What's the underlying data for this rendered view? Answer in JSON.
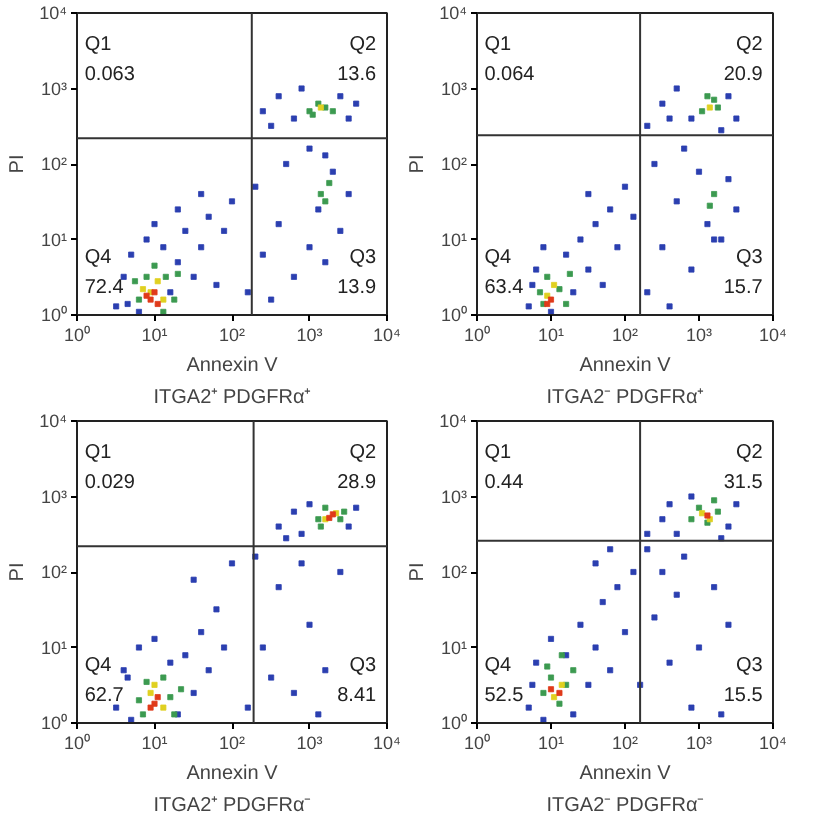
{
  "chart_data": [
    {
      "type": "scatter",
      "title": "ITGA2⁺ PDGFRα⁺",
      "xlabel": "Annexin V",
      "ylabel": "PI",
      "log": "xy",
      "marker": "square",
      "xlim": [
        1,
        10000
      ],
      "ylim": [
        1,
        10000
      ],
      "xticks": [
        {
          "value": 1,
          "label": "10⁰"
        },
        {
          "value": 10,
          "label": "10¹"
        },
        {
          "value": 100,
          "label": "10²"
        },
        {
          "value": 1000,
          "label": "10³"
        },
        {
          "value": 10000,
          "label": "10⁴"
        }
      ],
      "yticks": [
        {
          "value": 1,
          "label": "10⁰"
        },
        {
          "value": 10,
          "label": "10¹"
        },
        {
          "value": 100,
          "label": "10²"
        },
        {
          "value": 1000,
          "label": "10³"
        },
        {
          "value": 10000,
          "label": "10⁴"
        }
      ],
      "ref_lines": [
        {
          "axis": "x",
          "value": 180,
          "color": "#333333"
        },
        {
          "axis": "y",
          "value": 220,
          "color": "#333333"
        }
      ],
      "annotations": [
        "Q1",
        "0.063",
        "Q2",
        "13.6",
        "Q4",
        "72.4",
        "Q3",
        "13.9"
      ],
      "series": [
        {
          "color": "#2b3fb0",
          "x": [
            3.2,
            4,
            5,
            6.3,
            7.9,
            10,
            13,
            16,
            20,
            25,
            32,
            40,
            50,
            63,
            79,
            100,
            40,
            20,
            4.5,
            160,
            250,
            400,
            630,
            1000,
            1600,
            2500,
            200,
            500,
            1300,
            2000,
            1000,
            3200,
            320,
            1600,
            250,
            400,
            630,
            2500,
            3200,
            4000,
            790,
            320
          ],
          "values": [
            1.3,
            3.2,
            6.3,
            1.1,
            10,
            16,
            7.9,
            2,
            5,
            13,
            3.2,
            7.9,
            20,
            2.5,
            13,
            32,
            40,
            25,
            1.4,
            2,
            6.3,
            16,
            3.2,
            7.9,
            5,
            13,
            50,
            100,
            25,
            79,
            160,
            40,
            1.6,
            130,
            500,
            790,
            400,
            790,
            400,
            630,
            1000,
            320
          ]
        },
        {
          "color": "#3c9a50",
          "x": [
            6.3,
            7.9,
            10,
            14,
            18,
            20,
            5.6,
            13,
            1400,
            1800,
            1600,
            1000,
            1300,
            1600,
            2000,
            1100
          ],
          "values": [
            1.6,
            3.2,
            4.5,
            3.2,
            1.6,
            3.5,
            2.8,
            1.1,
            40,
            56,
            32,
            500,
            630,
            560,
            500,
            450
          ]
        },
        {
          "color": "#e0d020",
          "x": [
            8.9,
            11,
            13,
            7.1,
            1400
          ],
          "values": [
            2,
            2.8,
            1.6,
            2.2,
            560
          ]
        },
        {
          "color": "#e03a1a",
          "x": [
            8.9,
            10,
            11,
            7.9
          ],
          "values": [
            1.6,
            2,
            1.4,
            1.8
          ]
        }
      ]
    },
    {
      "type": "scatter",
      "title": "ITGA2⁻ PDGFRα⁺",
      "xlabel": "Annexin V",
      "ylabel": "PI",
      "log": "xy",
      "marker": "square",
      "xlim": [
        1,
        10000
      ],
      "ylim": [
        1,
        10000
      ],
      "xticks": [
        {
          "value": 1,
          "label": "10⁰"
        },
        {
          "value": 10,
          "label": "10¹"
        },
        {
          "value": 100,
          "label": "10²"
        },
        {
          "value": 1000,
          "label": "10³"
        },
        {
          "value": 10000,
          "label": "10⁴"
        }
      ],
      "yticks": [
        {
          "value": 1,
          "label": "10⁰"
        },
        {
          "value": 10,
          "label": "10¹"
        },
        {
          "value": 100,
          "label": "10²"
        },
        {
          "value": 1000,
          "label": "10³"
        },
        {
          "value": 10000,
          "label": "10⁴"
        }
      ],
      "ref_lines": [
        {
          "axis": "x",
          "value": 160,
          "color": "#333333"
        },
        {
          "axis": "y",
          "value": 240,
          "color": "#333333"
        }
      ],
      "annotations": [
        "Q1",
        "0.064",
        "Q2",
        "20.9",
        "Q4",
        "63.4",
        "Q3",
        "15.7"
      ],
      "series": [
        {
          "color": "#2b3fb0",
          "x": [
            5,
            6.3,
            7.9,
            10,
            16,
            20,
            25,
            32,
            40,
            50,
            63,
            79,
            100,
            130,
            32,
            5.6,
            200,
            320,
            500,
            790,
            1300,
            2000,
            2500,
            250,
            630,
            1000,
            1600,
            400,
            3200,
            200,
            320,
            500,
            790,
            2500,
            3200,
            400,
            2000
          ],
          "values": [
            1.3,
            4,
            7.9,
            1.1,
            6.3,
            2,
            10,
            4,
            16,
            2.5,
            25,
            7.9,
            50,
            20,
            40,
            2.5,
            2,
            7.9,
            32,
            4,
            16,
            10,
            63,
            100,
            160,
            79,
            10,
            1.3,
            25,
            320,
            630,
            1000,
            400,
            790,
            400,
            400,
            280
          ]
        },
        {
          "color": "#3c9a50",
          "x": [
            7.1,
            8.9,
            13,
            16,
            7.9,
            18,
            1400,
            1600,
            1100,
            1600,
            1800,
            1300
          ],
          "values": [
            2,
            3.2,
            2.2,
            1.4,
            1.4,
            3.5,
            28,
            40,
            500,
            710,
            560,
            790
          ]
        },
        {
          "color": "#e0d020",
          "x": [
            8.9,
            11,
            1400
          ],
          "values": [
            1.8,
            2.5,
            560
          ]
        },
        {
          "color": "#e03a1a",
          "x": [
            10,
            8.9
          ],
          "values": [
            1.6,
            1.4
          ]
        }
      ]
    },
    {
      "type": "scatter",
      "title": "ITGA2⁺ PDGFRα⁻",
      "xlabel": "Annexin V",
      "ylabel": "PI",
      "log": "xy",
      "marker": "square",
      "xlim": [
        1,
        10000
      ],
      "ylim": [
        1,
        10000
      ],
      "xticks": [
        {
          "value": 1,
          "label": "10⁰"
        },
        {
          "value": 10,
          "label": "10¹"
        },
        {
          "value": 100,
          "label": "10²"
        },
        {
          "value": 1000,
          "label": "10³"
        },
        {
          "value": 10000,
          "label": "10⁴"
        }
      ],
      "yticks": [
        {
          "value": 1,
          "label": "10⁰"
        },
        {
          "value": 10,
          "label": "10¹"
        },
        {
          "value": 100,
          "label": "10²"
        },
        {
          "value": 1000,
          "label": "10³"
        },
        {
          "value": 10000,
          "label": "10⁴"
        }
      ],
      "ref_lines": [
        {
          "axis": "x",
          "value": 190,
          "color": "#333333"
        },
        {
          "axis": "y",
          "value": 220,
          "color": "#333333"
        }
      ],
      "annotations": [
        "Q1",
        "0.029",
        "Q2",
        "28.9",
        "Q4",
        "62.7",
        "Q3",
        "8.41"
      ],
      "series": [
        {
          "color": "#2b3fb0",
          "x": [
            3.2,
            4,
            5,
            6.3,
            10,
            16,
            20,
            25,
            32,
            40,
            50,
            63,
            32,
            100,
            79,
            4.5,
            160,
            250,
            400,
            630,
            1000,
            1600,
            2500,
            200,
            790,
            1300,
            320,
            400,
            630,
            790,
            1000,
            3200,
            4000,
            500
          ],
          "values": [
            1.6,
            5,
            1.1,
            10,
            13,
            6.3,
            1.3,
            7.9,
            2.5,
            16,
            5,
            32,
            79,
            130,
            10,
            4,
            1.6,
            10,
            63,
            2.5,
            20,
            5,
            100,
            160,
            130,
            1.3,
            4,
            400,
            630,
            320,
            790,
            400,
            710,
            280
          ]
        },
        {
          "color": "#3c9a50",
          "x": [
            6.3,
            7.9,
            13,
            16,
            18,
            7.1,
            22,
            1300,
            1600,
            2500,
            2800,
            1400
          ],
          "values": [
            2,
            3.5,
            4,
            2.2,
            1.3,
            1.3,
            2.8,
            500,
            710,
            500,
            630,
            400
          ]
        },
        {
          "color": "#e0d020",
          "x": [
            8.9,
            13,
            10,
            1600,
            2200
          ],
          "values": [
            2.5,
            1.6,
            3.2,
            500,
            600
          ]
        },
        {
          "color": "#e03a1a",
          "x": [
            10,
            11,
            8.9,
            1800,
            2000
          ],
          "values": [
            1.8,
            2.2,
            1.6,
            520,
            580
          ]
        }
      ]
    },
    {
      "type": "scatter",
      "title": "ITGA2⁻ PDGFRα⁻",
      "xlabel": "Annexin V",
      "ylabel": "PI",
      "log": "xy",
      "marker": "square",
      "xlim": [
        1,
        10000
      ],
      "ylim": [
        1,
        10000
      ],
      "xticks": [
        {
          "value": 1,
          "label": "10⁰"
        },
        {
          "value": 10,
          "label": "10¹"
        },
        {
          "value": 100,
          "label": "10²"
        },
        {
          "value": 1000,
          "label": "10³"
        },
        {
          "value": 10000,
          "label": "10⁴"
        }
      ],
      "yticks": [
        {
          "value": 1,
          "label": "10⁰"
        },
        {
          "value": 10,
          "label": "10¹"
        },
        {
          "value": 100,
          "label": "10²"
        },
        {
          "value": 1000,
          "label": "10³"
        },
        {
          "value": 10000,
          "label": "10⁴"
        }
      ],
      "ref_lines": [
        {
          "axis": "x",
          "value": 160,
          "color": "#333333"
        },
        {
          "axis": "y",
          "value": 260,
          "color": "#333333"
        }
      ],
      "annotations": [
        "Q1",
        "0.44",
        "Q2",
        "31.5",
        "Q4",
        "52.5",
        "Q3",
        "15.5"
      ],
      "series": [
        {
          "color": "#2b3fb0",
          "x": [
            5,
            6.3,
            7.9,
            10,
            16,
            20,
            25,
            32,
            40,
            50,
            63,
            79,
            100,
            130,
            40,
            63,
            5.6,
            160,
            250,
            320,
            400,
            500,
            630,
            1000,
            1600,
            2000,
            2500,
            200,
            790,
            200,
            320,
            500,
            790,
            2500,
            3200,
            400,
            2000
          ],
          "values": [
            1.6,
            6.3,
            1.1,
            13,
            7.9,
            1.3,
            20,
            3.2,
            10,
            40,
            5,
            63,
            16,
            100,
            130,
            200,
            3.2,
            3.2,
            25,
            100,
            6.3,
            50,
            160,
            10,
            63,
            1.3,
            20,
            200,
            1.6,
            320,
            500,
            320,
            1000,
            400,
            790,
            790,
            280
          ]
        },
        {
          "color": "#3c9a50",
          "x": [
            7.9,
            10,
            13,
            16,
            20,
            8.9,
            14,
            790,
            1000,
            1300,
            1800,
            1600
          ],
          "values": [
            2.5,
            4,
            1.8,
            3.2,
            5,
            5.6,
            7.9,
            500,
            710,
            450,
            630,
            890
          ]
        },
        {
          "color": "#e0d020",
          "x": [
            11,
            14,
            1100,
            1400
          ],
          "values": [
            2.2,
            3.2,
            600,
            500
          ]
        },
        {
          "color": "#e03a1a",
          "x": [
            13,
            10,
            1300
          ],
          "values": [
            2.5,
            2.8,
            560
          ]
        }
      ]
    }
  ]
}
